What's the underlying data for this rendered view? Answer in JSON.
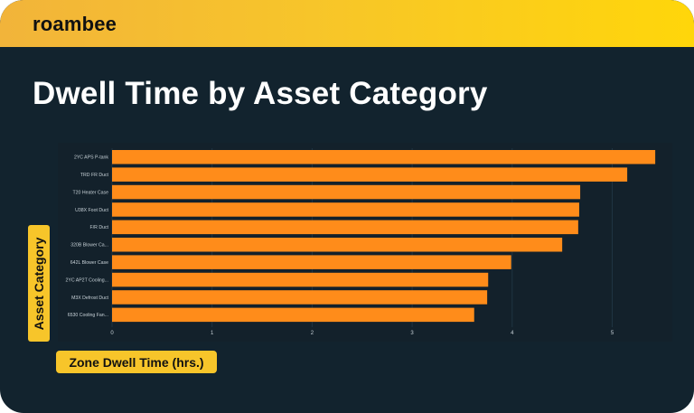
{
  "brand": {
    "logo_text": "roambee"
  },
  "title": "Dwell Time by Asset Category",
  "colors": {
    "bar": "#ff8c1a",
    "background": "#12232e",
    "header": "#f7c52a"
  },
  "chart_data": {
    "type": "bar",
    "orientation": "horizontal",
    "categories": [
      "2YC APS P-tank",
      "TRD FR Duct",
      "T20 Heater Case",
      "U38X Foot Duct",
      "F/R Duct",
      "320B Blower Ca...",
      "642L Blower Case",
      "2YC AP2T Cooling...",
      "M3X Defrost Duct",
      "6530 Cooling Fan..."
    ],
    "values": [
      5.43,
      5.15,
      4.68,
      4.67,
      4.66,
      4.5,
      3.99,
      3.76,
      3.75,
      3.62
    ],
    "xticks": [
      0,
      1,
      2,
      3,
      4,
      5
    ],
    "xlim": [
      0,
      5.5
    ],
    "xlabel": "Zone Dwell Time (hrs.)",
    "ylabel": "Asset Category",
    "grid": true
  }
}
